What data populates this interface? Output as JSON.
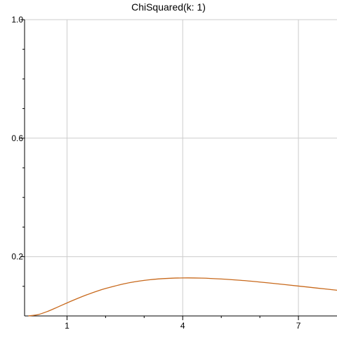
{
  "chart_data": {
    "type": "line",
    "title": "ChiSquared(k: 1)",
    "xlabel": "",
    "ylabel": "",
    "xlim": [
      -0.1,
      8.0
    ],
    "ylim": [
      0.0,
      1.0
    ],
    "x_ticks": [
      1,
      4,
      7
    ],
    "x_tick_labels": [
      "1",
      "4",
      "7"
    ],
    "x_minor_ticks": [
      2,
      3,
      5,
      6
    ],
    "y_ticks": [
      0.2,
      0.6,
      1.0
    ],
    "y_tick_labels": [
      "0.2",
      "0.6",
      "1.0"
    ],
    "y_minor_ticks": [
      0.1,
      0.3,
      0.4,
      0.5,
      0.7,
      0.8,
      0.9
    ],
    "grid": true,
    "series": [
      {
        "color": "#c8691c",
        "x": [
          0.0,
          0.25,
          0.5,
          0.75,
          1.0,
          1.25,
          1.5,
          1.75,
          2.0,
          2.5,
          3.0,
          3.5,
          4.0,
          4.5,
          5.0,
          5.5,
          6.0,
          6.5,
          7.0,
          7.5,
          8.0
        ],
        "y": [
          0.0,
          0.0045,
          0.0155,
          0.0295,
          0.0439,
          0.0577,
          0.0707,
          0.0824,
          0.0927,
          0.1091,
          0.1199,
          0.126,
          0.1283,
          0.1277,
          0.1247,
          0.1202,
          0.1144,
          0.1079,
          0.1009,
          0.0938,
          0.0867
        ]
      }
    ]
  }
}
